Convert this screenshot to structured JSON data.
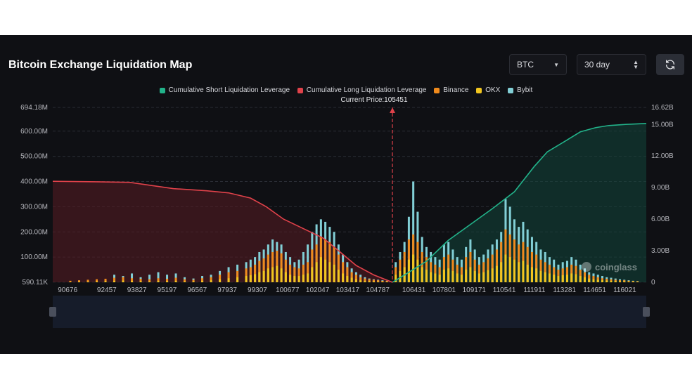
{
  "header": {
    "title": "Bitcoin Exchange Liquidation Map",
    "coin_select": "BTC",
    "range_select": "30 day",
    "refresh_icon": "refresh-icon"
  },
  "legend": [
    {
      "label": "Cumulative Short Liquidation Leverage",
      "color": "#22b38a"
    },
    {
      "label": "Cumulative Long Liquidation Leverage",
      "color": "#e0424a"
    },
    {
      "label": "Binance",
      "color": "#f08a1c"
    },
    {
      "label": "OKX",
      "color": "#f2c61f"
    },
    {
      "label": "Bybit",
      "color": "#82cfd6"
    }
  ],
  "watermark": "coinglass",
  "current_price_label": "Current Price:105451",
  "chart_data": {
    "type": "bar",
    "title": "Bitcoin Exchange Liquidation Map",
    "x_tick_labels": [
      "90676",
      "92457",
      "93827",
      "95197",
      "96567",
      "97937",
      "99307",
      "100677",
      "102047",
      "103417",
      "104787",
      "106431",
      "107801",
      "109171",
      "110541",
      "111911",
      "113281",
      "114651",
      "116021"
    ],
    "y_left_tick_labels": [
      "590.11K",
      "100.00M",
      "200.00M",
      "300.00M",
      "400.00M",
      "500.00M",
      "600.00M",
      "694.18M"
    ],
    "y_right_tick_labels": [
      "0",
      "3.00B",
      "6.00B",
      "9.00B",
      "12.00B",
      "15.00B",
      "16.62B"
    ],
    "x_range": [
      90000,
      117000
    ],
    "y_left_range": [
      0,
      694.18
    ],
    "y_left_unit": "M",
    "y_right_range": [
      0,
      16.62
    ],
    "y_right_unit": "B",
    "current_price": 105451,
    "grid": true,
    "legend_position": "top-center",
    "series": [
      {
        "name": "Cumulative Long Liquidation Leverage",
        "type": "area",
        "axis": "right",
        "x": [
          90000,
          92000,
          93500,
          94500,
          95500,
          97000,
          98000,
          99000,
          99700,
          100500,
          101500,
          102300,
          103000,
          103800,
          104600,
          105451
        ],
        "y": [
          9.6,
          9.55,
          9.5,
          9.2,
          8.9,
          8.7,
          8.5,
          8.0,
          7.2,
          6.0,
          5.0,
          4.2,
          3.0,
          1.6,
          0.7,
          0.0
        ]
      },
      {
        "name": "Cumulative Short Liquidation Leverage",
        "type": "area",
        "axis": "right",
        "x": [
          105451,
          106000,
          107000,
          108000,
          109000,
          110000,
          111000,
          111900,
          112500,
          113300,
          114000,
          114700,
          115300,
          116000,
          116500,
          117000
        ],
        "y": [
          0.0,
          0.7,
          2.0,
          4.0,
          5.5,
          7.0,
          8.6,
          11.0,
          12.4,
          13.4,
          14.3,
          14.7,
          14.9,
          15.0,
          15.05,
          15.1
        ]
      },
      {
        "name": "Binance",
        "type": "bar",
        "axis": "left",
        "x": [
          90800,
          91200,
          91600,
          92000,
          92400,
          92800,
          93200,
          93600,
          94000,
          94400,
          94800,
          95200,
          95600,
          96000,
          96400,
          96800,
          97200,
          97600,
          98000,
          98400,
          98800,
          99000,
          99200,
          99400,
          99600,
          99800,
          100000,
          100200,
          100400,
          100600,
          100800,
          101000,
          101200,
          101400,
          101600,
          101800,
          102000,
          102200,
          102400,
          102600,
          102800,
          103000,
          103200,
          103400,
          103600,
          103800,
          104000,
          104200,
          104400,
          104600,
          104800,
          105000,
          105200,
          105600,
          105800,
          106000,
          106200,
          106400,
          106600,
          106800,
          107000,
          107200,
          107400,
          107600,
          107800,
          108000,
          108200,
          108400,
          108600,
          108800,
          109000,
          109200,
          109400,
          109600,
          109800,
          110000,
          110200,
          110400,
          110600,
          110800,
          111000,
          111200,
          111400,
          111600,
          111800,
          112000,
          112200,
          112400,
          112600,
          112800,
          113000,
          113200,
          113400,
          113600,
          113800,
          114000,
          114200,
          114400,
          114600,
          114800,
          115000,
          115200,
          115400,
          115600,
          115800,
          116000,
          116200,
          116400,
          116600
        ],
        "y": [
          6,
          8,
          10,
          12,
          14,
          18,
          20,
          16,
          14,
          12,
          16,
          14,
          18,
          12,
          10,
          16,
          20,
          30,
          40,
          45,
          55,
          60,
          70,
          85,
          95,
          110,
          120,
          125,
          115,
          90,
          70,
          60,
          55,
          70,
          80,
          130,
          150,
          180,
          170,
          160,
          140,
          110,
          80,
          60,
          40,
          30,
          20,
          15,
          12,
          10,
          8,
          6,
          5,
          60,
          90,
          120,
          170,
          190,
          160,
          120,
          100,
          80,
          70,
          60,
          100,
          110,
          90,
          70,
          60,
          100,
          120,
          90,
          70,
          80,
          95,
          110,
          130,
          160,
          210,
          190,
          170,
          150,
          160,
          140,
          120,
          110,
          90,
          80,
          70,
          60,
          50,
          55,
          60,
          70,
          65,
          50,
          40,
          30,
          25,
          20,
          16,
          14,
          12,
          10,
          8,
          8,
          6,
          5,
          4
        ]
      },
      {
        "name": "OKX",
        "type": "bar",
        "axis": "left",
        "x": [
          90800,
          91200,
          91600,
          92000,
          92400,
          92800,
          93200,
          93600,
          94000,
          94400,
          94800,
          95200,
          95600,
          96000,
          96400,
          96800,
          97200,
          97600,
          98000,
          98400,
          98800,
          99000,
          99200,
          99400,
          99600,
          99800,
          100000,
          100200,
          100400,
          100600,
          100800,
          101000,
          101200,
          101400,
          101600,
          101800,
          102000,
          102200,
          102400,
          102600,
          102800,
          103000,
          103200,
          103400,
          103600,
          103800,
          104000,
          104200,
          104400,
          104600,
          104800,
          105000,
          105200,
          105600,
          105800,
          106000,
          106200,
          106400,
          106600,
          106800,
          107000,
          107200,
          107400,
          107600,
          107800,
          108000,
          108200,
          108400,
          108600,
          108800,
          109000,
          109200,
          109400,
          109600,
          109800,
          110000,
          110200,
          110400,
          110600,
          110800,
          111000,
          111200,
          111400,
          111600,
          111800,
          112000,
          112200,
          112400,
          112600,
          112800,
          113000,
          113200,
          113400,
          113600,
          113800,
          114000,
          114200,
          114400,
          114600,
          114800,
          115000,
          115200,
          115400,
          115600,
          115800,
          116000,
          116200,
          116400,
          116600
        ],
        "y": [
          2,
          3,
          3,
          4,
          5,
          6,
          7,
          6,
          5,
          4,
          6,
          5,
          6,
          4,
          4,
          6,
          8,
          12,
          16,
          20,
          25,
          28,
          32,
          40,
          45,
          55,
          60,
          65,
          55,
          40,
          30,
          25,
          25,
          30,
          35,
          60,
          80,
          100,
          90,
          80,
          70,
          50,
          35,
          25,
          18,
          12,
          8,
          6,
          5,
          4,
          3,
          3,
          2,
          30,
          45,
          60,
          90,
          110,
          90,
          60,
          50,
          40,
          35,
          30,
          50,
          55,
          45,
          35,
          30,
          50,
          60,
          45,
          35,
          40,
          48,
          55,
          65,
          80,
          110,
          100,
          90,
          80,
          85,
          70,
          60,
          55,
          45,
          40,
          35,
          30,
          25,
          28,
          30,
          35,
          32,
          25,
          20,
          15,
          12,
          10,
          8,
          7,
          6,
          5,
          4,
          4,
          3,
          3,
          2
        ]
      },
      {
        "name": "Bybit",
        "type": "bar",
        "axis": "left",
        "x": [
          90800,
          91200,
          91600,
          92000,
          92400,
          92800,
          93200,
          93600,
          94000,
          94400,
          94800,
          95200,
          95600,
          96000,
          96400,
          96800,
          97200,
          97600,
          98000,
          98400,
          98800,
          99000,
          99200,
          99400,
          99600,
          99800,
          100000,
          100200,
          100400,
          100600,
          100800,
          101000,
          101200,
          101400,
          101600,
          101800,
          102000,
          102200,
          102400,
          102600,
          102800,
          103000,
          103200,
          103400,
          103600,
          103800,
          104000,
          104200,
          104400,
          104600,
          104800,
          105000,
          105200,
          105600,
          105800,
          106000,
          106200,
          106400,
          106600,
          106800,
          107000,
          107200,
          107400,
          107600,
          107800,
          108000,
          108200,
          108400,
          108600,
          108800,
          109000,
          109200,
          109400,
          109600,
          109800,
          110000,
          110200,
          110400,
          110600,
          110800,
          111000,
          111200,
          111400,
          111600,
          111800,
          112000,
          112200,
          112400,
          112600,
          112800,
          113000,
          113200,
          113400,
          113600,
          113800,
          114000,
          114200,
          114400,
          114600,
          114800,
          115000,
          115200,
          115400,
          115600,
          115800,
          116000,
          116200,
          116400,
          116600
        ],
        "y": [
          3,
          4,
          5,
          8,
          10,
          30,
          25,
          35,
          20,
          30,
          40,
          30,
          35,
          20,
          15,
          25,
          30,
          45,
          60,
          70,
          80,
          90,
          100,
          120,
          130,
          150,
          170,
          160,
          150,
          120,
          100,
          80,
          90,
          120,
          150,
          200,
          230,
          250,
          240,
          220,
          200,
          150,
          110,
          80,
          55,
          40,
          30,
          20,
          15,
          12,
          10,
          8,
          6,
          80,
          120,
          160,
          260,
          400,
          280,
          180,
          140,
          120,
          100,
          90,
          150,
          160,
          130,
          100,
          90,
          140,
          170,
          130,
          100,
          110,
          130,
          150,
          170,
          200,
          330,
          300,
          250,
          220,
          240,
          210,
          180,
          160,
          130,
          120,
          100,
          90,
          70,
          80,
          85,
          100,
          90,
          70,
          55,
          40,
          35,
          30,
          25,
          20,
          18,
          15,
          12,
          10,
          8,
          6,
          5
        ]
      }
    ]
  }
}
